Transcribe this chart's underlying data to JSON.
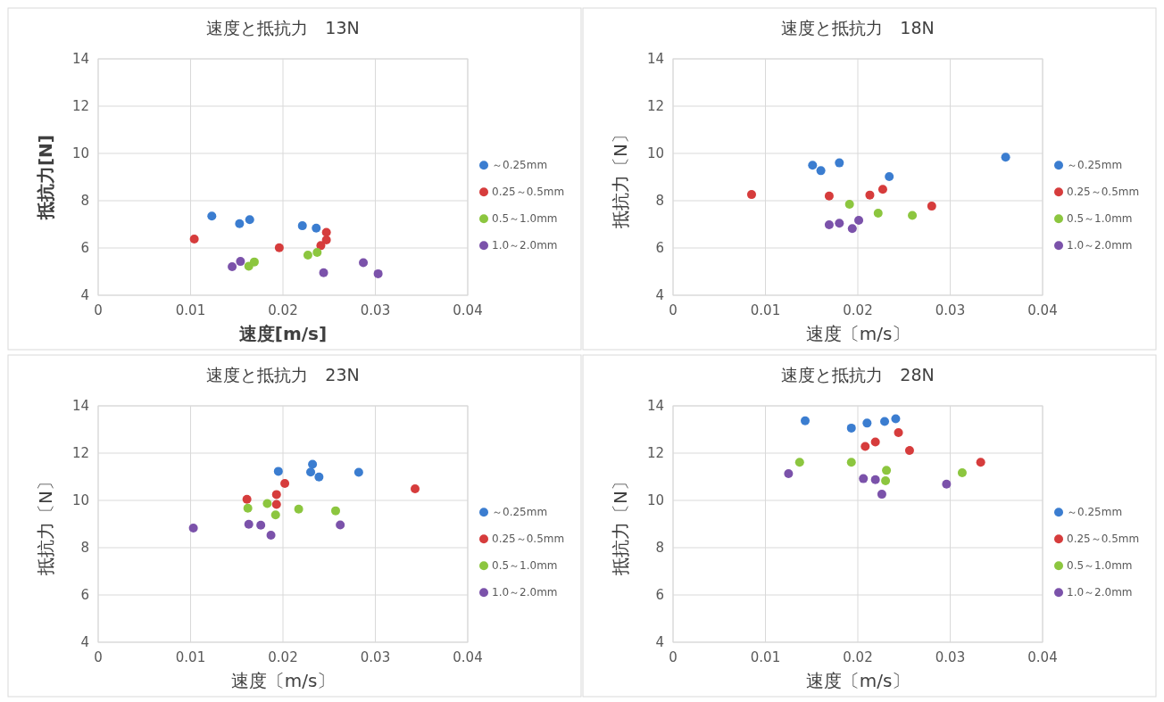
{
  "chart_data": [
    {
      "type": "scatter",
      "title": "速度と抵抗力　13N",
      "xlabel": "速度[m/s]",
      "ylabel": "抵抗力[N]",
      "xlim": [
        0,
        0.04
      ],
      "xticks": [
        0,
        0.01,
        0.02,
        0.03,
        0.04
      ],
      "ylim": [
        4,
        14
      ],
      "yticks": [
        4,
        6,
        8,
        10,
        12,
        14
      ],
      "grid": true,
      "legend": "right",
      "marker": "circle",
      "series": [
        {
          "name": "～0.25mm",
          "color": "#3b7dd0",
          "x": [
            0.0123,
            0.0153,
            0.0164,
            0.0221,
            0.0236
          ],
          "values": [
            7.35,
            7.03,
            7.2,
            6.94,
            6.84
          ]
        },
        {
          "name": "0.25～0.5mm",
          "color": "#d63c3c",
          "x": [
            0.0104,
            0.0196,
            0.0247,
            0.0247,
            0.0241
          ],
          "values": [
            6.38,
            6.01,
            6.66,
            6.34,
            6.1
          ]
        },
        {
          "name": "0.5～1.0mm",
          "color": "#8cc63f",
          "x": [
            0.0163,
            0.0169,
            0.0227,
            0.0237
          ],
          "values": [
            5.23,
            5.41,
            5.7,
            5.81
          ]
        },
        {
          "name": "1.0～2.0mm",
          "color": "#7b52aa",
          "x": [
            0.0145,
            0.0154,
            0.0244,
            0.0287,
            0.0303
          ],
          "values": [
            5.21,
            5.43,
            4.95,
            5.38,
            4.91
          ]
        }
      ]
    },
    {
      "type": "scatter",
      "title": "速度と抵抗力　18N",
      "xlabel": "速度〔m/s〕",
      "ylabel": "抵抗力〔N〕",
      "xlim": [
        0,
        0.04
      ],
      "xticks": [
        0,
        0.01,
        0.02,
        0.03,
        0.04
      ],
      "ylim": [
        4,
        14
      ],
      "yticks": [
        4,
        6,
        8,
        10,
        12,
        14
      ],
      "grid": true,
      "legend": "right",
      "marker": "circle",
      "series": [
        {
          "name": "～0.25mm",
          "color": "#3b7dd0",
          "x": [
            0.0151,
            0.016,
            0.018,
            0.0234,
            0.036
          ],
          "values": [
            9.5,
            9.27,
            9.6,
            9.02,
            9.84
          ]
        },
        {
          "name": "0.25～0.5mm",
          "color": "#d63c3c",
          "x": [
            0.0085,
            0.0169,
            0.0213,
            0.0227,
            0.028
          ],
          "values": [
            8.26,
            8.2,
            8.24,
            8.48,
            7.77
          ]
        },
        {
          "name": "0.5～1.0mm",
          "color": "#8cc63f",
          "x": [
            0.0191,
            0.0222,
            0.0259
          ],
          "values": [
            7.85,
            7.47,
            7.38
          ]
        },
        {
          "name": "1.0～2.0mm",
          "color": "#7b52aa",
          "x": [
            0.0169,
            0.018,
            0.0194,
            0.0201
          ],
          "values": [
            6.98,
            7.05,
            6.82,
            7.17
          ]
        }
      ]
    },
    {
      "type": "scatter",
      "title": "速度と抵抗力　23N",
      "xlabel": "速度〔m/s〕",
      "ylabel": "抵抗力〔N〕",
      "xlim": [
        0,
        0.04
      ],
      "xticks": [
        0,
        0.01,
        0.02,
        0.03,
        0.04
      ],
      "ylim": [
        4,
        14
      ],
      "yticks": [
        4,
        6,
        8,
        10,
        12,
        14
      ],
      "grid": true,
      "legend": "right",
      "marker": "circle",
      "series": [
        {
          "name": "～0.25mm",
          "color": "#3b7dd0",
          "x": [
            0.0195,
            0.0232,
            0.023,
            0.0239,
            0.0282
          ],
          "values": [
            11.23,
            11.53,
            11.2,
            10.99,
            11.19
          ]
        },
        {
          "name": "0.25～0.5mm",
          "color": "#d63c3c",
          "x": [
            0.0161,
            0.0193,
            0.0193,
            0.0202,
            0.0343
          ],
          "values": [
            10.05,
            10.25,
            9.83,
            10.72,
            10.49
          ]
        },
        {
          "name": "0.5～1.0mm",
          "color": "#8cc63f",
          "x": [
            0.0162,
            0.0183,
            0.0192,
            0.0217,
            0.0257
          ],
          "values": [
            9.67,
            9.87,
            9.39,
            9.63,
            9.56
          ]
        },
        {
          "name": "1.0～2.0mm",
          "color": "#7b52aa",
          "x": [
            0.0103,
            0.0163,
            0.0176,
            0.0187,
            0.0262
          ],
          "values": [
            8.83,
            8.99,
            8.95,
            8.53,
            8.96
          ]
        }
      ]
    },
    {
      "type": "scatter",
      "title": "速度と抵抗力　28N",
      "xlabel": "速度〔m/s〕",
      "ylabel": "抵抗力〔N〕",
      "xlim": [
        0,
        0.04
      ],
      "xticks": [
        0,
        0.01,
        0.02,
        0.03,
        0.04
      ],
      "ylim": [
        4,
        14
      ],
      "yticks": [
        4,
        6,
        8,
        10,
        12,
        14
      ],
      "grid": true,
      "legend": "right",
      "marker": "circle",
      "series": [
        {
          "name": "～0.25mm",
          "color": "#3b7dd0",
          "x": [
            0.0143,
            0.0193,
            0.021,
            0.0229,
            0.0241
          ],
          "values": [
            13.37,
            13.06,
            13.27,
            13.34,
            13.45
          ]
        },
        {
          "name": "0.25～0.5mm",
          "color": "#d63c3c",
          "x": [
            0.0208,
            0.0219,
            0.0244,
            0.0256,
            0.0333
          ],
          "values": [
            12.28,
            12.47,
            12.87,
            12.11,
            11.61
          ]
        },
        {
          "name": "0.5～1.0mm",
          "color": "#8cc63f",
          "x": [
            0.0137,
            0.0193,
            0.0231,
            0.023,
            0.0313
          ],
          "values": [
            11.61,
            11.61,
            11.27,
            10.83,
            11.17
          ]
        },
        {
          "name": "1.0～2.0mm",
          "color": "#7b52aa",
          "x": [
            0.0125,
            0.0206,
            0.0219,
            0.0226,
            0.0296
          ],
          "values": [
            11.13,
            10.92,
            10.88,
            10.26,
            10.69
          ]
        }
      ]
    }
  ]
}
